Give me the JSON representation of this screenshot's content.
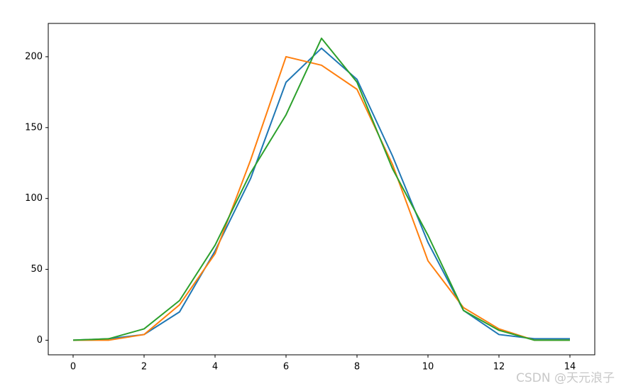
{
  "chart_data": {
    "type": "line",
    "x": [
      0,
      1,
      2,
      3,
      4,
      5,
      6,
      7,
      8,
      9,
      10,
      11,
      12,
      13,
      14
    ],
    "series": [
      {
        "color": "#1f77b4",
        "values": [
          0,
          1,
          4,
          20,
          63,
          114,
          182,
          206,
          184,
          130,
          69,
          21,
          4,
          1,
          1
        ]
      },
      {
        "color": "#ff7f0e",
        "values": [
          0,
          0,
          4,
          25,
          61,
          127,
          200,
          194,
          177,
          124,
          56,
          23,
          8,
          0,
          0
        ]
      },
      {
        "color": "#2ca02c",
        "values": [
          0,
          1,
          8,
          28,
          67,
          118,
          159,
          213,
          182,
          121,
          74,
          21,
          7,
          0,
          0
        ]
      }
    ],
    "xlim": [
      -0.7,
      14.7
    ],
    "ylim": [
      -10.3,
      223.5
    ],
    "xticks": [
      0,
      2,
      4,
      6,
      8,
      10,
      12,
      14
    ],
    "yticks": [
      0,
      50,
      100,
      150,
      200
    ],
    "grid": false
  },
  "watermark": "CSDN @天元浪子"
}
